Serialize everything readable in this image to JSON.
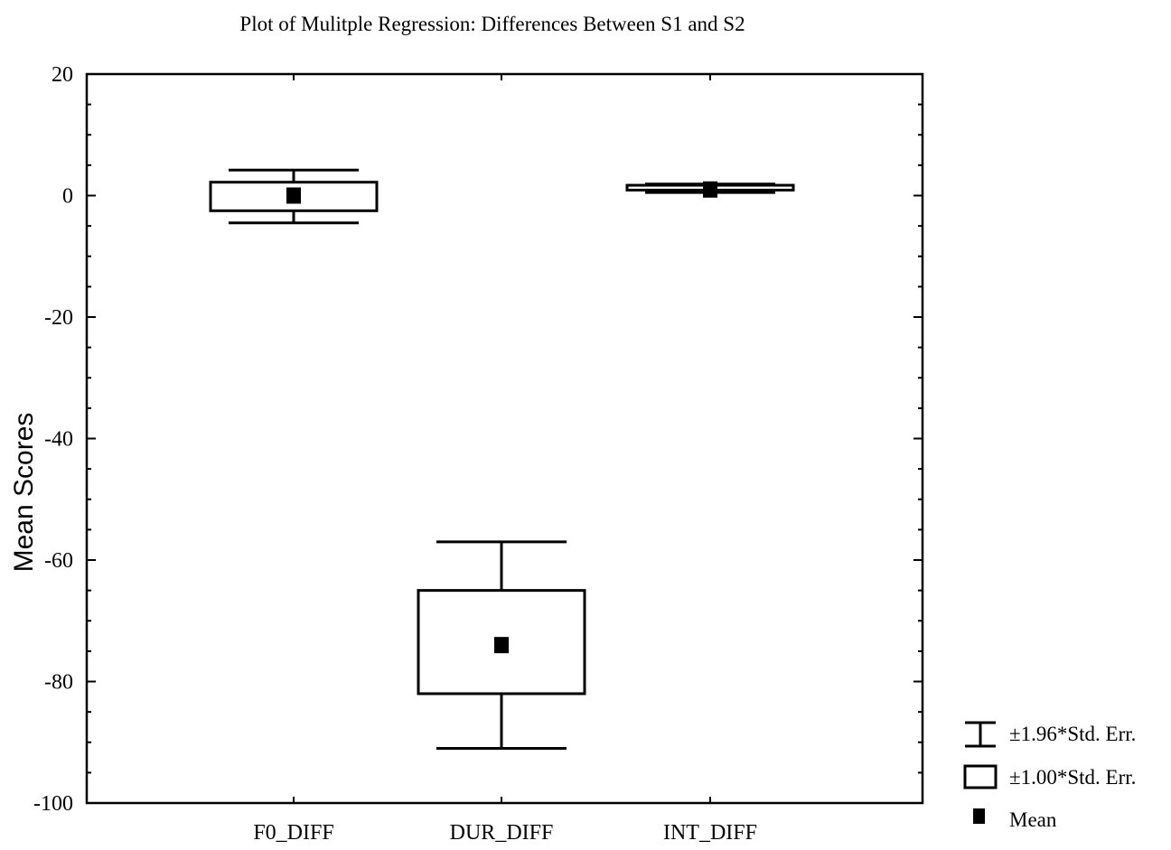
{
  "chart_data": {
    "type": "box",
    "title": "Plot of Mulitple Regression: Differences Between S1 and S2",
    "xlabel": "",
    "ylabel": "Mean Scores",
    "ylim": [
      -100,
      20
    ],
    "yticks": [
      "20",
      "0",
      "-20",
      "-40",
      "-60",
      "-80",
      "-100"
    ],
    "ytick_values": [
      20,
      0,
      -20,
      -40,
      -60,
      -80,
      -100
    ],
    "grid": false,
    "legend_position": "bottom-right",
    "categories": [
      "F0_DIFF",
      "DUR_DIFF",
      "INT_DIFF"
    ],
    "series": [
      {
        "category": "F0_DIFF",
        "mean": 0,
        "se1_low": -2.5,
        "se1_high": 2.2,
        "se196_low": -4.5,
        "se196_high": 4.2
      },
      {
        "category": "DUR_DIFF",
        "mean": -74,
        "se1_low": -82,
        "se1_high": -65,
        "se196_low": -91,
        "se196_high": -57
      },
      {
        "category": "INT_DIFF",
        "mean": 1,
        "se1_low": 0.9,
        "se1_high": 1.7,
        "se196_low": 0.5,
        "se196_high": 1.9
      }
    ],
    "legend": [
      {
        "symbol": "whisker",
        "label": "±1.96*Std. Err."
      },
      {
        "symbol": "box",
        "label": "±1.00*Std. Err."
      },
      {
        "symbol": "mean",
        "label": "Mean"
      }
    ]
  }
}
